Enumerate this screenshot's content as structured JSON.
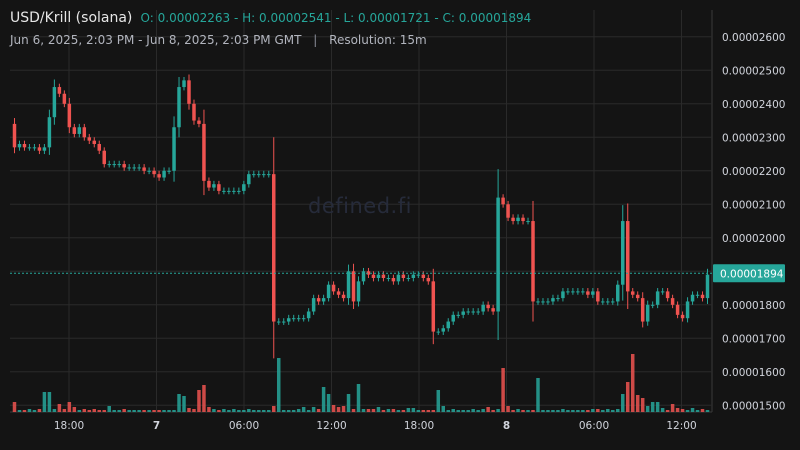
{
  "header": {
    "symbol": "USD/Krill (solana)",
    "ohlc": "O: 0.00002263 - H: 0.00002541 - L: 0.00001721 - C: 0.00001894",
    "range": "Jun 6, 2025, 2:03 PM - Jun 8, 2025, 2:03 PM GMT",
    "separator": "|",
    "resolution": "Resolution: 15m"
  },
  "watermark": "defined.fi",
  "colors": {
    "up": "#26a69a",
    "down": "#ef5350",
    "grid": "#2a2a2a",
    "background": "#141414"
  },
  "chart_data": {
    "type": "candlestick",
    "ylim": [
      1.48e-05,
      2.68e-05
    ],
    "y_ticks": [
      "0.00001500",
      "0.00001600",
      "0.00001700",
      "0.00001800",
      "0.00001900",
      "0.00002000",
      "0.00002100",
      "0.00002200",
      "0.00002300",
      "0.00002400",
      "0.00002500",
      "0.00002600"
    ],
    "x_ticks": [
      {
        "label": "18:00",
        "bold": false
      },
      {
        "label": "7",
        "bold": true
      },
      {
        "label": "06:00",
        "bold": false
      },
      {
        "label": "12:00",
        "bold": false
      },
      {
        "label": "18:00",
        "bold": false
      },
      {
        "label": "8",
        "bold": true
      },
      {
        "label": "06:00",
        "bold": false
      },
      {
        "label": "12:00",
        "bold": false
      }
    ],
    "last_price": "0.00001894",
    "last_price_value": 1.894e-05,
    "price_path": [
      2.34e-05,
      2.27e-05,
      2.28e-05,
      2.27e-05,
      2.27e-05,
      2.27e-05,
      2.26e-05,
      2.27e-05,
      2.36e-05,
      2.45e-05,
      2.43e-05,
      2.4e-05,
      2.33e-05,
      2.31e-05,
      2.33e-05,
      2.3e-05,
      2.29e-05,
      2.28e-05,
      2.26e-05,
      2.22e-05,
      2.22e-05,
      2.22e-05,
      2.22e-05,
      2.21e-05,
      2.21e-05,
      2.21e-05,
      2.21e-05,
      2.2e-05,
      2.2e-05,
      2.19e-05,
      2.18e-05,
      2.2e-05,
      2.2e-05,
      2.33e-05,
      2.45e-05,
      2.47e-05,
      2.4e-05,
      2.35e-05,
      2.34e-05,
      2.17e-05,
      2.15e-05,
      2.16e-05,
      2.14e-05,
      2.14e-05,
      2.14e-05,
      2.14e-05,
      2.14e-05,
      2.16e-05,
      2.19e-05,
      2.19e-05,
      2.19e-05,
      2.19e-05,
      2.19e-05,
      1.75e-05,
      1.75e-05,
      1.75e-05,
      1.76e-05,
      1.76e-05,
      1.76e-05,
      1.76e-05,
      1.78e-05,
      1.82e-05,
      1.81e-05,
      1.82e-05,
      1.86e-05,
      1.84e-05,
      1.83e-05,
      1.82e-05,
      1.9e-05,
      1.81e-05,
      1.87e-05,
      1.9e-05,
      1.89e-05,
      1.88e-05,
      1.89e-05,
      1.88e-05,
      1.88e-05,
      1.87e-05,
      1.89e-05,
      1.88e-05,
      1.88e-05,
      1.89e-05,
      1.89e-05,
      1.88e-05,
      1.87e-05,
      1.72e-05,
      1.72e-05,
      1.73e-05,
      1.75e-05,
      1.77e-05,
      1.77e-05,
      1.78e-05,
      1.78e-05,
      1.78e-05,
      1.78e-05,
      1.8e-05,
      1.79e-05,
      1.78e-05,
      2.12e-05,
      2.1e-05,
      2.06e-05,
      2.05e-05,
      2.06e-05,
      2.05e-05,
      2.05e-05,
      1.81e-05,
      1.81e-05,
      1.81e-05,
      1.81e-05,
      1.82e-05,
      1.82e-05,
      1.84e-05,
      1.84e-05,
      1.84e-05,
      1.84e-05,
      1.84e-05,
      1.83e-05,
      1.84e-05,
      1.81e-05,
      1.81e-05,
      1.81e-05,
      1.81e-05,
      1.86e-05,
      2.05e-05,
      1.84e-05,
      1.83e-05,
      1.82e-05,
      1.75e-05,
      1.8e-05,
      1.8e-05,
      1.84e-05,
      1.84e-05,
      1.82e-05,
      1.8e-05,
      1.77e-05,
      1.76e-05,
      1.81e-05,
      1.83e-05,
      1.83e-05,
      1.82e-05,
      1.89e-05
    ],
    "volumes": [
      10,
      2,
      2,
      3,
      2,
      3,
      20,
      20,
      3,
      8,
      3,
      10,
      5,
      2,
      3,
      2,
      3,
      2,
      2,
      6,
      2,
      2,
      3,
      2,
      2,
      2,
      2,
      2,
      2,
      2,
      2,
      2,
      2,
      18,
      16,
      4,
      3,
      22,
      27,
      5,
      3,
      2,
      3,
      2,
      3,
      2,
      2,
      3,
      2,
      2,
      2,
      2,
      6,
      54,
      2,
      2,
      2,
      3,
      5,
      2,
      5,
      3,
      25,
      18,
      7,
      5,
      6,
      18,
      3,
      28,
      3,
      3,
      3,
      5,
      2,
      3,
      3,
      2,
      2,
      4,
      4,
      2,
      2,
      2,
      2,
      22,
      6,
      2,
      3,
      2,
      2,
      2,
      3,
      2,
      3,
      5,
      2,
      3,
      44,
      6,
      2,
      3,
      2,
      2,
      2,
      34,
      2,
      2,
      2,
      2,
      3,
      2,
      2,
      2,
      2,
      2,
      3,
      3,
      2,
      3,
      2,
      3,
      18,
      30,
      58,
      17,
      14,
      6,
      10,
      10,
      4,
      2,
      8,
      4,
      3,
      2,
      4,
      2,
      3,
      2,
      10
    ]
  }
}
